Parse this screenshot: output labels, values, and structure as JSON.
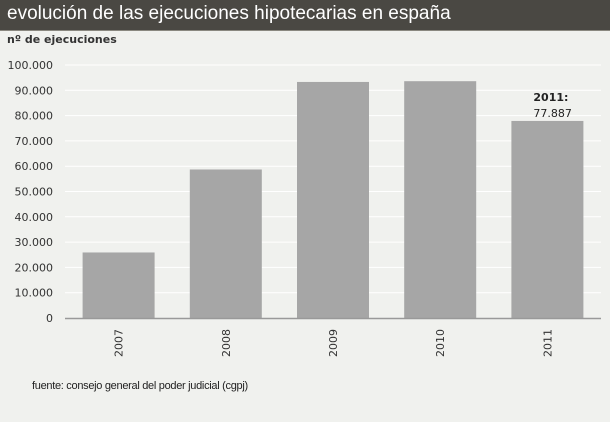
{
  "header": {
    "title": "evolución de las ejecuciones hipotecarias en españa"
  },
  "source": "fuente: consejo general del poder judicial (cgpj)",
  "colors": {
    "header_bg": "#4a4843",
    "bar": "#a6a6a6",
    "background": "#f0f1ee",
    "grid": "#ffffff"
  },
  "chart_data": {
    "type": "bar",
    "title": "evolución de las ejecuciones hipotecarias en españa",
    "ylabel": "nº de ejecuciones",
    "xlabel": "",
    "categories": [
      "2007",
      "2008",
      "2009",
      "2010",
      "2011"
    ],
    "values": [
      25900,
      58700,
      93300,
      93600,
      77887
    ],
    "ylim": [
      0,
      100000
    ],
    "yticks": [
      "0",
      "10.000",
      "20.000",
      "30.000",
      "40.000",
      "50.000",
      "60.000",
      "70.000",
      "80.000",
      "90.000",
      "100.000"
    ],
    "grid": true,
    "annotation": {
      "label": "2011:",
      "value": "77.887"
    }
  }
}
